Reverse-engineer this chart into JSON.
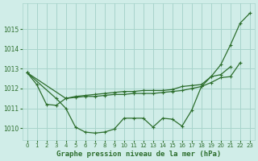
{
  "title": "Graphe pression niveau de la mer (hPa)",
  "bg_color": "#d0ede8",
  "grid_color": "#a8d4cc",
  "line_color": "#2d6e2d",
  "xlim": [
    -0.5,
    23.5
  ],
  "ylim": [
    1009.4,
    1016.3
  ],
  "yticks": [
    1010,
    1011,
    1012,
    1013,
    1014,
    1015
  ],
  "xtick_labels": [
    "0",
    "1",
    "2",
    "3",
    "4",
    "5",
    "6",
    "7",
    "8",
    "9",
    "10",
    "11",
    "12",
    "13",
    "14",
    "15",
    "16",
    "17",
    "18",
    "19",
    "20",
    "21",
    "22",
    "23"
  ],
  "series": [
    {
      "x": [
        0,
        1,
        2,
        3,
        4
      ],
      "y": [
        1012.8,
        1012.2,
        1011.2,
        1011.15,
        1011.5
      ]
    },
    {
      "x": [
        0,
        4,
        5,
        6,
        7,
        8,
        9,
        10,
        11,
        12,
        13,
        14,
        15,
        16,
        17,
        18,
        19,
        20,
        21,
        22
      ],
      "y": [
        1012.8,
        1011.5,
        1011.55,
        1011.6,
        1011.6,
        1011.65,
        1011.7,
        1011.7,
        1011.75,
        1011.75,
        1011.75,
        1011.8,
        1011.85,
        1011.9,
        1012.0,
        1012.1,
        1012.3,
        1012.55,
        1012.6,
        1013.3
      ]
    },
    {
      "x": [
        4,
        5,
        6,
        7,
        8,
        9,
        10,
        11,
        12,
        13,
        14,
        15,
        16,
        17,
        18,
        19,
        20,
        21
      ],
      "y": [
        1011.5,
        1011.6,
        1011.65,
        1011.7,
        1011.75,
        1011.8,
        1011.85,
        1011.85,
        1011.9,
        1011.9,
        1011.9,
        1011.95,
        1012.1,
        1012.15,
        1012.2,
        1012.6,
        1012.7,
        1013.1
      ]
    },
    {
      "x": [
        0,
        3,
        4,
        5,
        6,
        7,
        8,
        9,
        10,
        11,
        12,
        13,
        14,
        15,
        16,
        17,
        18,
        19,
        20,
        21,
        22,
        23
      ],
      "y": [
        1012.8,
        1011.5,
        1011.0,
        1010.05,
        1009.8,
        1009.75,
        1009.8,
        1009.95,
        1010.5,
        1010.5,
        1010.5,
        1010.05,
        1010.5,
        1010.45,
        1010.1,
        1010.9,
        1012.1,
        1012.6,
        1013.2,
        1014.2,
        1015.3,
        1015.8
      ]
    }
  ]
}
